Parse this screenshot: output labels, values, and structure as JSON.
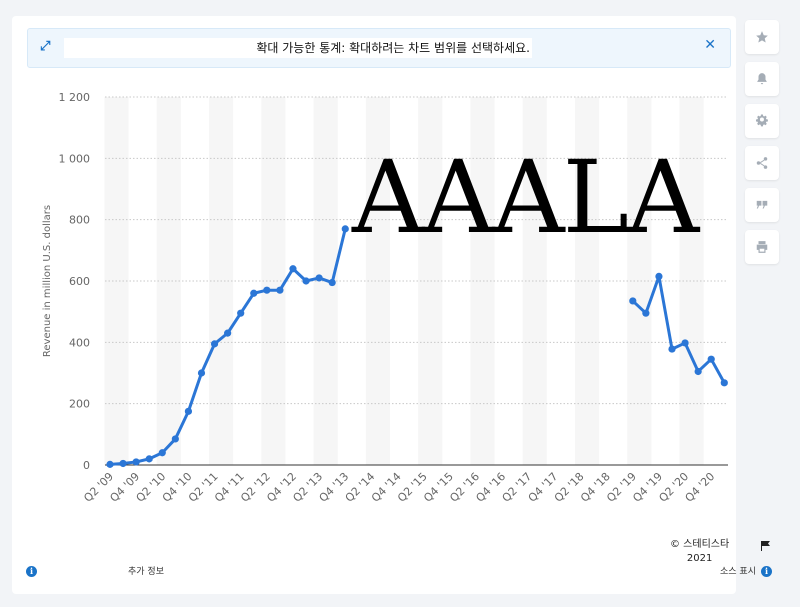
{
  "banner": {
    "text": "확대 가능한 통계: 확대하려는 차트 범위를 선택하세요.",
    "expand_icon": "expand-icon",
    "close_icon": "close-icon"
  },
  "sidebar": {
    "buttons": [
      {
        "name": "favorite",
        "icon": "star-icon"
      },
      {
        "name": "notification",
        "icon": "bell-icon"
      },
      {
        "name": "settings",
        "icon": "gear-icon"
      },
      {
        "name": "share",
        "icon": "share-icon"
      },
      {
        "name": "cite",
        "icon": "quote-icon"
      },
      {
        "name": "print",
        "icon": "printer-icon"
      }
    ]
  },
  "footer": {
    "more_info": "추가 정보",
    "copyright_line1": "© 스테티스타",
    "copyright_line2": "2021",
    "show_source": "소스 표시"
  },
  "overlay_text": "AAALA",
  "colors": {
    "line": "#2b76d6",
    "band": "#f6f6f6",
    "grid": "#c8c8c8",
    "accent": "#1a73c8"
  },
  "chart_data": {
    "type": "line",
    "ylabel": "Revenue in million U.S. dollars",
    "ylim": [
      0,
      1200
    ],
    "yticks": [
      0,
      200,
      400,
      600,
      800,
      1000,
      1200
    ],
    "ytick_labels": [
      "0",
      "200",
      "400",
      "600",
      "800",
      "1 000",
      "1 200"
    ],
    "categories": [
      "Q2 '09",
      "Q3 '09",
      "Q4 '09",
      "Q1 '10",
      "Q2 '10",
      "Q3 '10",
      "Q4 '10",
      "Q1 '11",
      "Q2 '11",
      "Q3 '11",
      "Q4 '11",
      "Q1 '12",
      "Q2 '12",
      "Q3 '12",
      "Q4 '12",
      "Q1 '13",
      "Q2 '13",
      "Q3 '13",
      "Q4 '13",
      "Q1 '14",
      "Q2 '14",
      "Q3 '14",
      "Q4 '14",
      "Q1 '15",
      "Q2 '15",
      "Q3 '15",
      "Q4 '15",
      "Q1 '16",
      "Q2 '16",
      "Q3 '16",
      "Q4 '16",
      "Q1 '17",
      "Q2 '17",
      "Q3 '17",
      "Q4 '17",
      "Q1 '18",
      "Q2 '18",
      "Q3 '18",
      "Q4 '18",
      "Q1 '19",
      "Q2 '19",
      "Q3 '19",
      "Q4 '19",
      "Q1 '20",
      "Q2 '20",
      "Q3 '20",
      "Q4 '20",
      "Q1 '21"
    ],
    "xtick_labels": [
      "Q2 '09",
      "Q4 '09",
      "Q2 '10",
      "Q4 '10",
      "Q2 '11",
      "Q4 '11",
      "Q2 '12",
      "Q4 '12",
      "Q2 '13",
      "Q4 '13",
      "Q2 '14",
      "Q4 '14",
      "Q2 '15",
      "Q4 '15",
      "Q2 '16",
      "Q4 '16",
      "Q2 '17",
      "Q4 '17",
      "Q2 '18",
      "Q4 '18",
      "Q2 '19",
      "Q4 '19",
      "Q2 '20",
      "Q4 '20"
    ],
    "series": [
      {
        "values": [
          2,
          5,
          10,
          20,
          40,
          85,
          175,
          300,
          395,
          430,
          495,
          560,
          570,
          570,
          640,
          600,
          610,
          595,
          770,
          null,
          null,
          null,
          null,
          null,
          null,
          null,
          null,
          null,
          null,
          null,
          null,
          null,
          null,
          null,
          null,
          null,
          null,
          null,
          null,
          null,
          535,
          495,
          615,
          378,
          398,
          305,
          345,
          268
        ]
      }
    ],
    "grid": true,
    "legend": "none"
  }
}
